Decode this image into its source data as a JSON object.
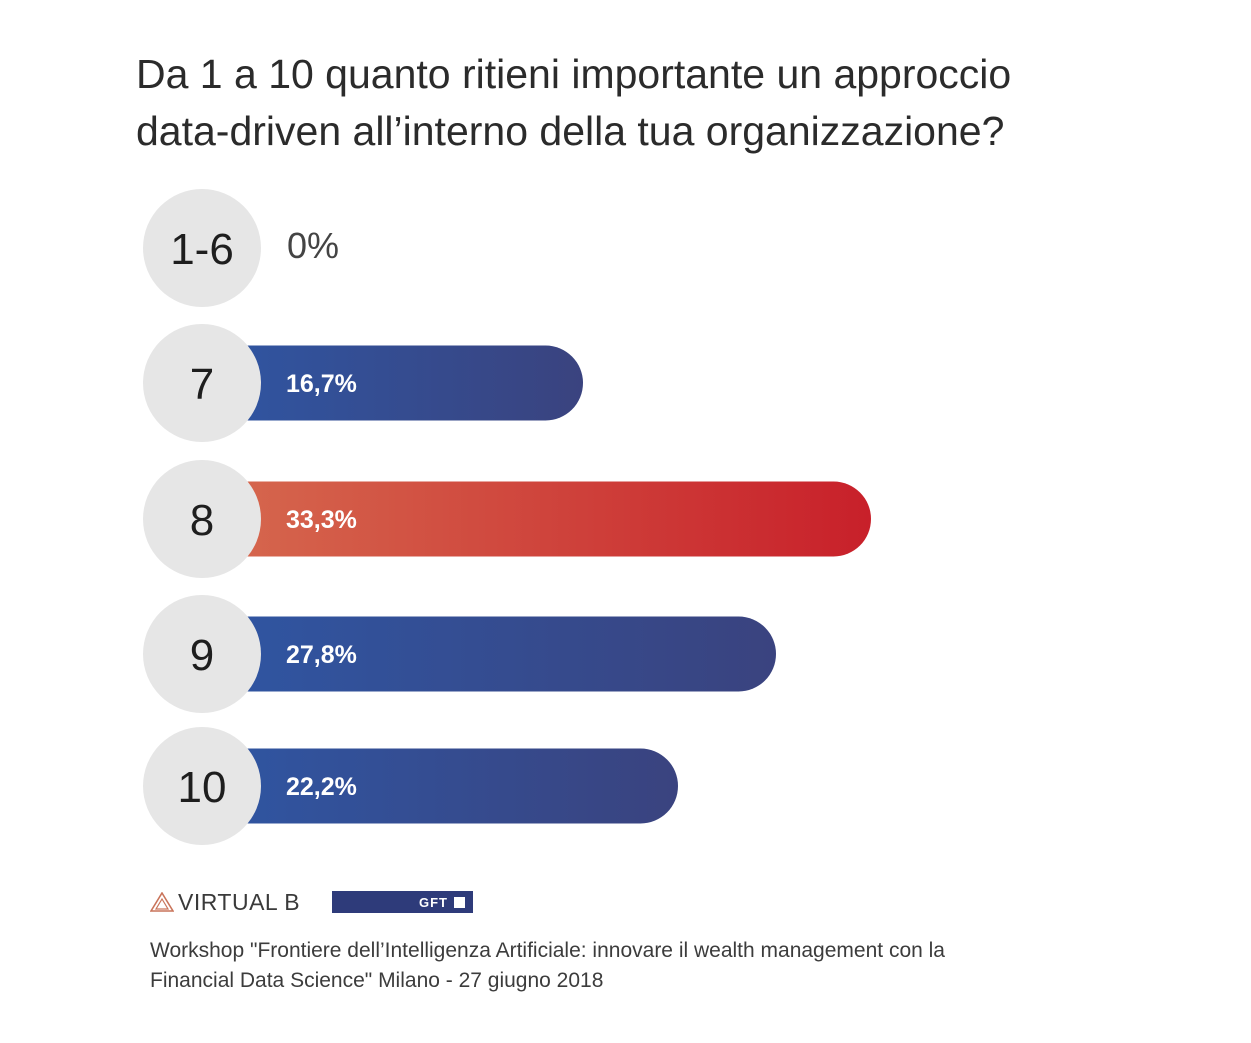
{
  "title": {
    "line1": "Da 1 a 10 quanto ritieni importante un approccio",
    "line2": "data-driven all’interno della tua organizzazione?"
  },
  "chart_data": {
    "type": "bar",
    "orientation": "horizontal",
    "categories": [
      "1-6",
      "7",
      "8",
      "9",
      "10"
    ],
    "values": [
      0,
      16.7,
      33.3,
      27.8,
      22.2
    ],
    "value_labels": [
      "0%",
      "16,7%",
      "33,3%",
      "27,8%",
      "22,2%"
    ],
    "highlight_index": 2,
    "colors": {
      "bar_start": "#2f56a3",
      "bar_end": "#3a437f",
      "highlight_start": "#d66a4f",
      "highlight_end": "#c8202a",
      "circle": "#e6e6e6",
      "zero_label": "#444444",
      "bar_label": "#ffffff",
      "category_label": "#1e1e1e"
    }
  },
  "logos": {
    "virtual_b": "VIRTUAL B",
    "gft": "GFT",
    "icons": [
      "triangle-logo-icon",
      "gft-square-icon"
    ]
  },
  "caption": {
    "line1": "Workshop \"Frontiere dell’Intelligenza Artificiale: innovare il wealth management con la",
    "line2": "Financial Data Science\" Milano - 27 giugno 2018"
  }
}
